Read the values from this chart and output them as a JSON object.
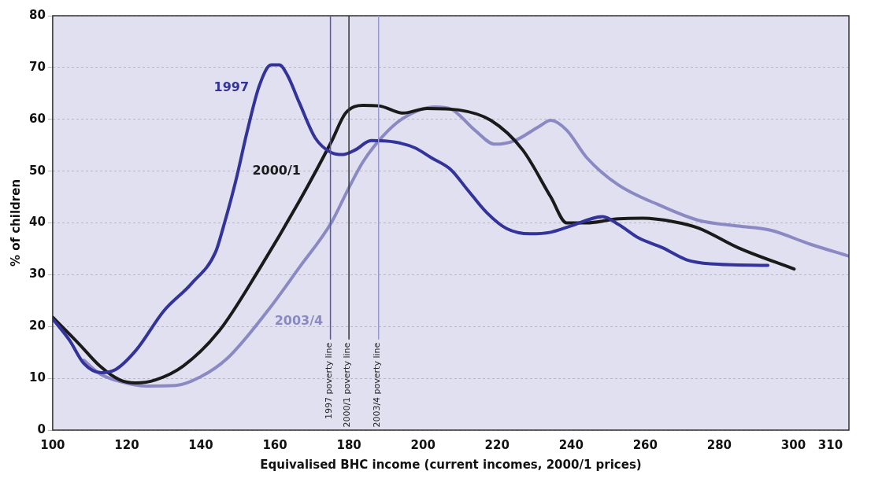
{
  "chart_data": {
    "type": "line",
    "xlabel": "Equivalised BHC income (current incomes, 2000/1 prices)",
    "ylabel": "% of children",
    "xlim": [
      100,
      315
    ],
    "xticks": [
      100,
      120,
      140,
      160,
      180,
      200,
      220,
      240,
      260,
      280,
      300,
      310
    ],
    "ylim": [
      0,
      80
    ],
    "yticks": [
      0,
      10,
      20,
      30,
      40,
      50,
      60,
      70,
      80
    ],
    "grid": "y",
    "legend": false,
    "marker": "none",
    "line_style": "solid",
    "series": [
      {
        "name": "1997",
        "color": "#33339a",
        "x": [
          100,
          104.5,
          108.4,
          113.1,
          117,
          122.6,
          130,
          137.5,
          144,
          146,
          149.4,
          152.6,
          155.8,
          159,
          161.2,
          163.4,
          166.6,
          170.9,
          175.2,
          178.4,
          181.7,
          186,
          192.5,
          197.8,
          202.2,
          207.5,
          211.9,
          217.2,
          222.6,
          229,
          234.5,
          239.9,
          248.5,
          252.8,
          258.2,
          264.7,
          271.1,
          277.6,
          293.1
        ],
        "values": [
          21.5,
          17.4,
          12.9,
          11.1,
          11.7,
          15.5,
          23,
          28.3,
          34.4,
          39,
          48,
          57.9,
          66.5,
          70.5,
          70.5,
          68.5,
          63.2,
          56.4,
          53.6,
          53.2,
          54.1,
          55.9,
          55.6,
          54.5,
          52.6,
          50.3,
          46.5,
          42,
          38.9,
          37.9,
          38.2,
          39.4,
          41.2,
          39.7,
          37.1,
          35.2,
          32.9,
          32.1,
          31.8
        ]
      },
      {
        "name": "2000/1",
        "color": "#1a1a1a",
        "x": [
          100,
          107.3,
          112.7,
          118.1,
          122.4,
          127.8,
          135.3,
          145,
          155.8,
          166.6,
          175.2,
          179.1,
          183.8,
          188.1,
          194.6,
          201.1,
          209.7,
          218.3,
          226.9,
          234.5,
          238.8,
          244.2,
          252.8,
          259.3,
          267.9,
          274.4,
          285.1,
          300.2
        ],
        "values": [
          21.8,
          16.5,
          12.4,
          9.7,
          9.1,
          9.7,
          12.4,
          19.2,
          31.1,
          44.2,
          55.6,
          61.2,
          62.7,
          62.6,
          61.2,
          62.1,
          61.8,
          59.8,
          54.1,
          45,
          40,
          40,
          40.8,
          40.9,
          40.2,
          39,
          35.2,
          31.1
        ]
      },
      {
        "name": "2003/4",
        "color": "#8b89c4",
        "x": [
          108.4,
          112.7,
          118.1,
          125.6,
          133.2,
          139.7,
          147.2,
          158,
          166.6,
          175.2,
          179.5,
          183.8,
          189.2,
          194.6,
          203.2,
          207.5,
          214,
          219.4,
          224.8,
          231.3,
          234.5,
          238.8,
          244.2,
          252.8,
          263.6,
          274.4,
          285.1,
          293.8,
          304.5,
          314.9
        ],
        "values": [
          13.5,
          10.9,
          9.4,
          8.5,
          8.6,
          10.2,
          13.9,
          23,
          31.4,
          40,
          46.1,
          51.8,
          56.8,
          60.2,
          62.4,
          62,
          57.9,
          55.2,
          55.9,
          58.6,
          59.8,
          57.9,
          52.6,
          47.3,
          43.5,
          40.5,
          39.4,
          38.6,
          35.9,
          33.6
        ]
      }
    ],
    "ref_lines": [
      {
        "axis": "x",
        "value": 175,
        "label": "1997 poverty line",
        "color": "#5555aa"
      },
      {
        "axis": "x",
        "value": 180,
        "label": "2000/1 poverty line",
        "color": "#333333"
      },
      {
        "axis": "x",
        "value": 188,
        "label": "2003/4 poverty line",
        "color": "#9a98d0"
      }
    ]
  }
}
